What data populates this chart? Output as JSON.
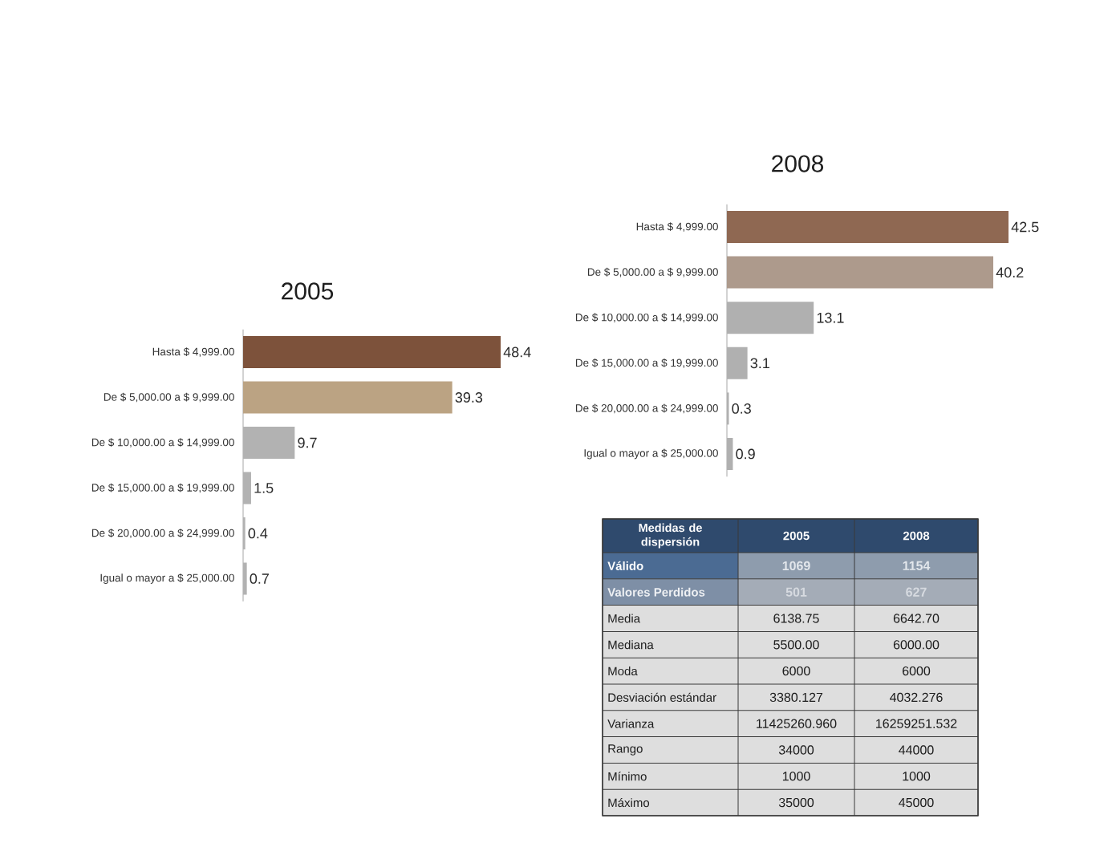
{
  "chart_data": [
    {
      "type": "bar",
      "orientation": "horizontal",
      "title": "2005",
      "categories": [
        "Hasta $ 4,999.00",
        "De $ 5,000.00 a $ 9,999.00",
        "De $ 10,000.00 a $ 14,999.00",
        "De $ 15,000.00 a $ 19,999.00",
        "De $ 20,000.00 a $ 24,999.00",
        "Igual o mayor a $ 25,000.00"
      ],
      "values": [
        48.4,
        39.3,
        9.7,
        1.5,
        0.4,
        0.7
      ],
      "colors": [
        "#7d523b",
        "#bba383",
        "#b2b2b2",
        "#b2b2b2",
        "#b2b2b2",
        "#b2b2b2"
      ],
      "data_labels": true
    },
    {
      "type": "bar",
      "orientation": "horizontal",
      "title": "2008",
      "categories": [
        "Hasta $ 4,999.00",
        "De $ 5,000.00 a $ 9,999.00",
        "De $ 10,000.00 a $ 14,999.00",
        "De $ 15,000.00 a $ 19,999.00",
        "De $ 20,000.00 a $ 24,999.00",
        "Igual o mayor a $ 25,000.00"
      ],
      "values": [
        42.5,
        40.2,
        13.1,
        3.1,
        0.3,
        0.9
      ],
      "colors": [
        "#8f6852",
        "#ad9a8c",
        "#b0b0b0",
        "#b0b0b0",
        "#b0b0b0",
        "#b0b0b0"
      ],
      "data_labels": true
    },
    {
      "type": "other",
      "ylabel": "Medidas de dispersión",
      "categories": [
        "2005",
        "2008"
      ],
      "y_categories": [
        "Válido",
        "Valores Perdidos",
        "Media",
        "Mediana",
        "Moda",
        "Desviación estándar",
        "Varianza",
        "Rango",
        "Mínimo",
        "Máximo"
      ],
      "cell_labels": [
        [
          "1069",
          "1154"
        ],
        [
          "501",
          "627"
        ],
        [
          "6138.75",
          "6642.70"
        ],
        [
          "5500.00",
          "6000.00"
        ],
        [
          "6000",
          "6000"
        ],
        [
          "3380.127",
          "4032.276"
        ],
        [
          "11425260.960",
          "16259251.532"
        ],
        [
          "34000",
          "44000"
        ],
        [
          "1000",
          "1000"
        ],
        [
          "35000",
          "45000"
        ]
      ]
    }
  ]
}
